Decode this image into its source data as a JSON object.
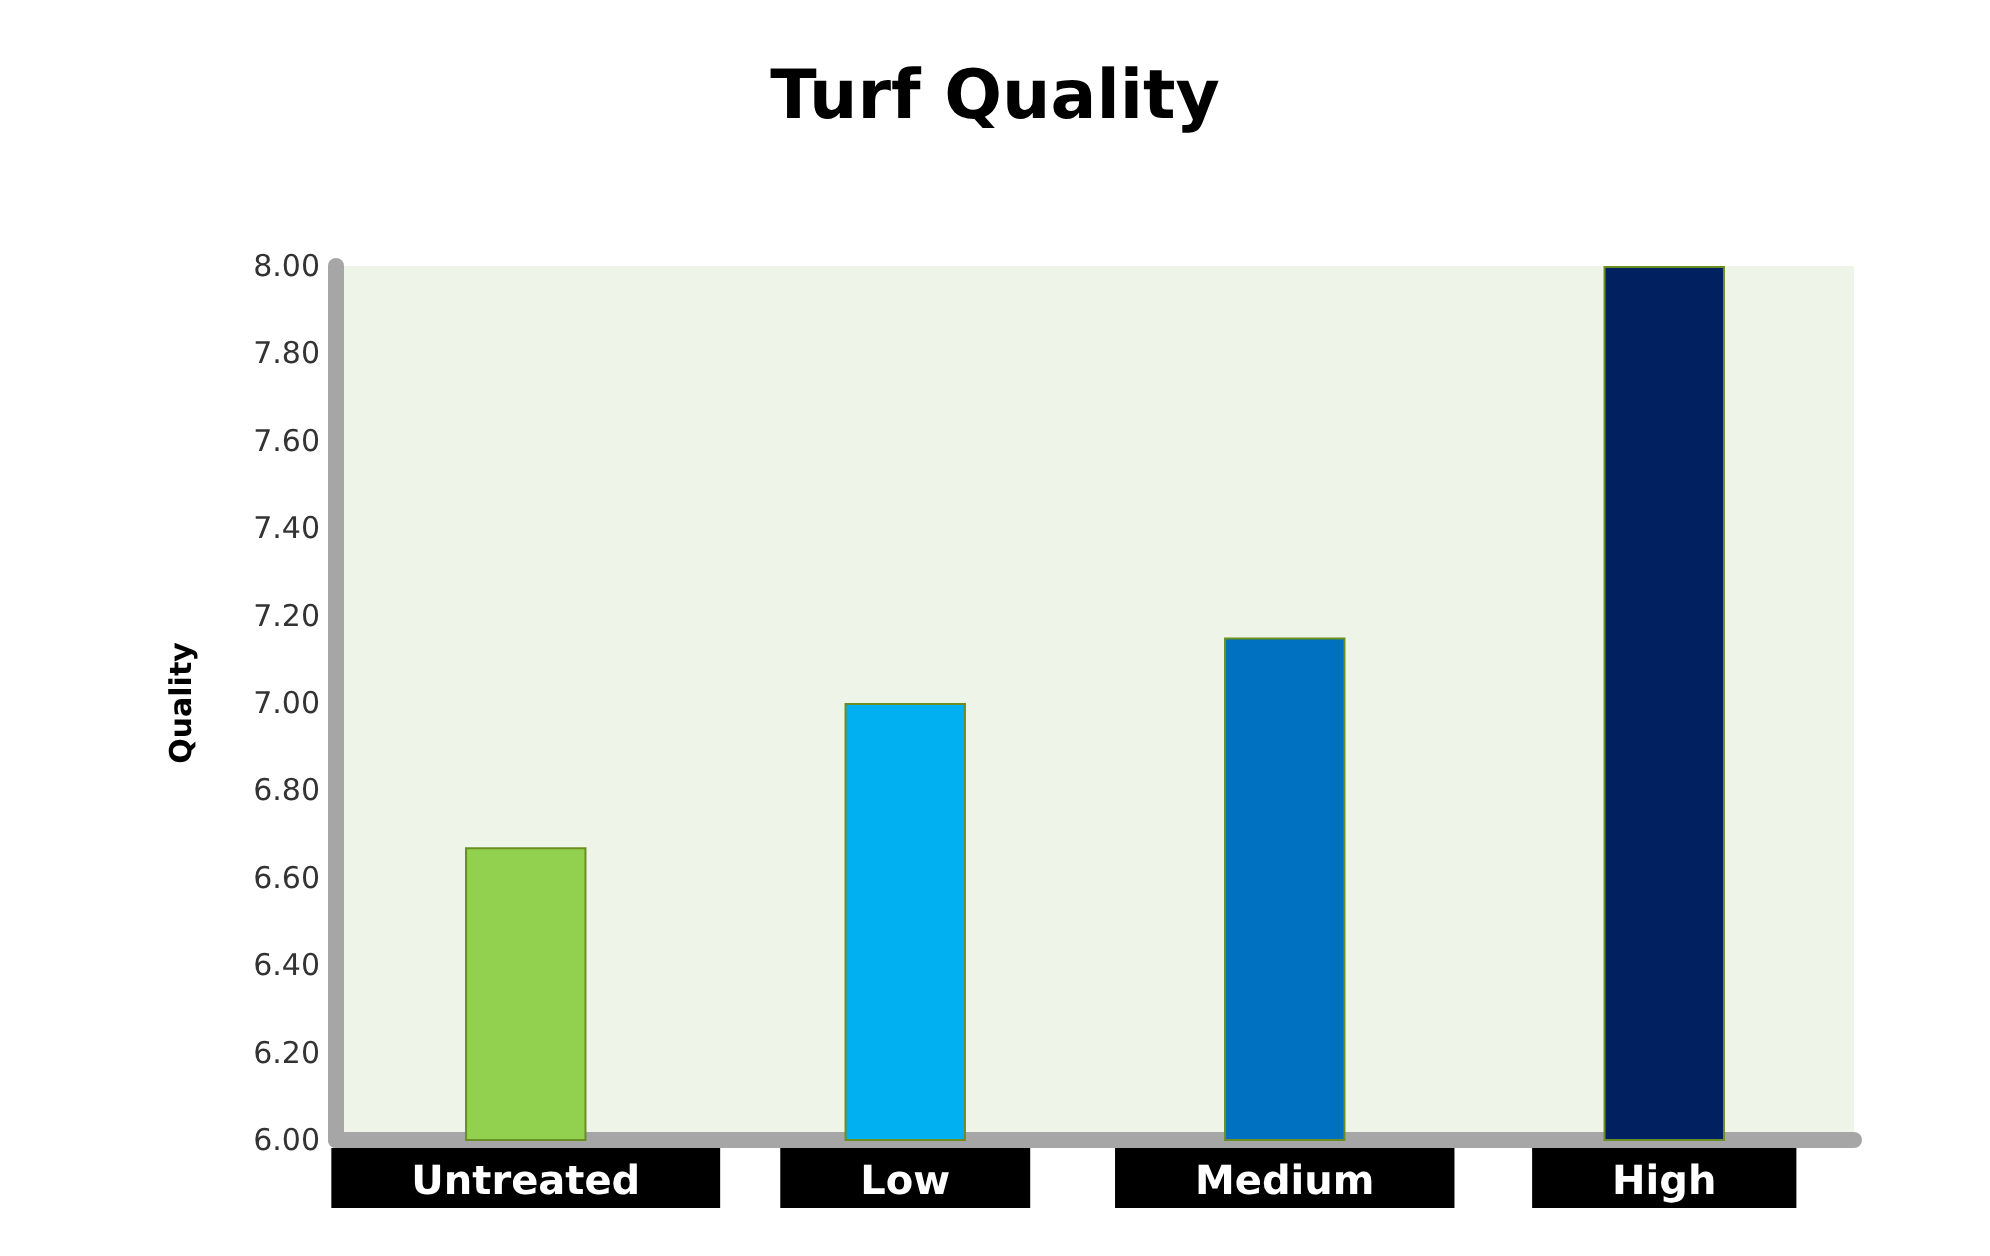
{
  "chart_data": {
    "type": "bar",
    "title": "Turf Quality",
    "ylabel": "Quality",
    "categories": [
      "Untreated",
      "Low",
      "Medium",
      "High"
    ],
    "values": [
      6.67,
      7.0,
      7.15,
      8.0
    ],
    "colors": [
      "#92d050",
      "#00b0f0",
      "#0070c0",
      "#002060"
    ],
    "ylim": [
      6,
      8
    ],
    "yticks": [
      {
        "value": 6,
        "label": "6.00"
      },
      {
        "value": 6.2,
        "label": "6.20"
      },
      {
        "value": 6.4,
        "label": "6.40"
      },
      {
        "value": 6.6,
        "label": "6.60"
      },
      {
        "value": 6.8,
        "label": "6.80"
      },
      {
        "value": 7,
        "label": "7.00"
      },
      {
        "value": 7.2,
        "label": "7.20"
      },
      {
        "value": 7.4,
        "label": "7.40"
      },
      {
        "value": 7.6,
        "label": "7.60"
      },
      {
        "value": 7.8,
        "label": "7.80"
      },
      {
        "value": 8,
        "label": "8.00"
      }
    ],
    "grid": false
  }
}
